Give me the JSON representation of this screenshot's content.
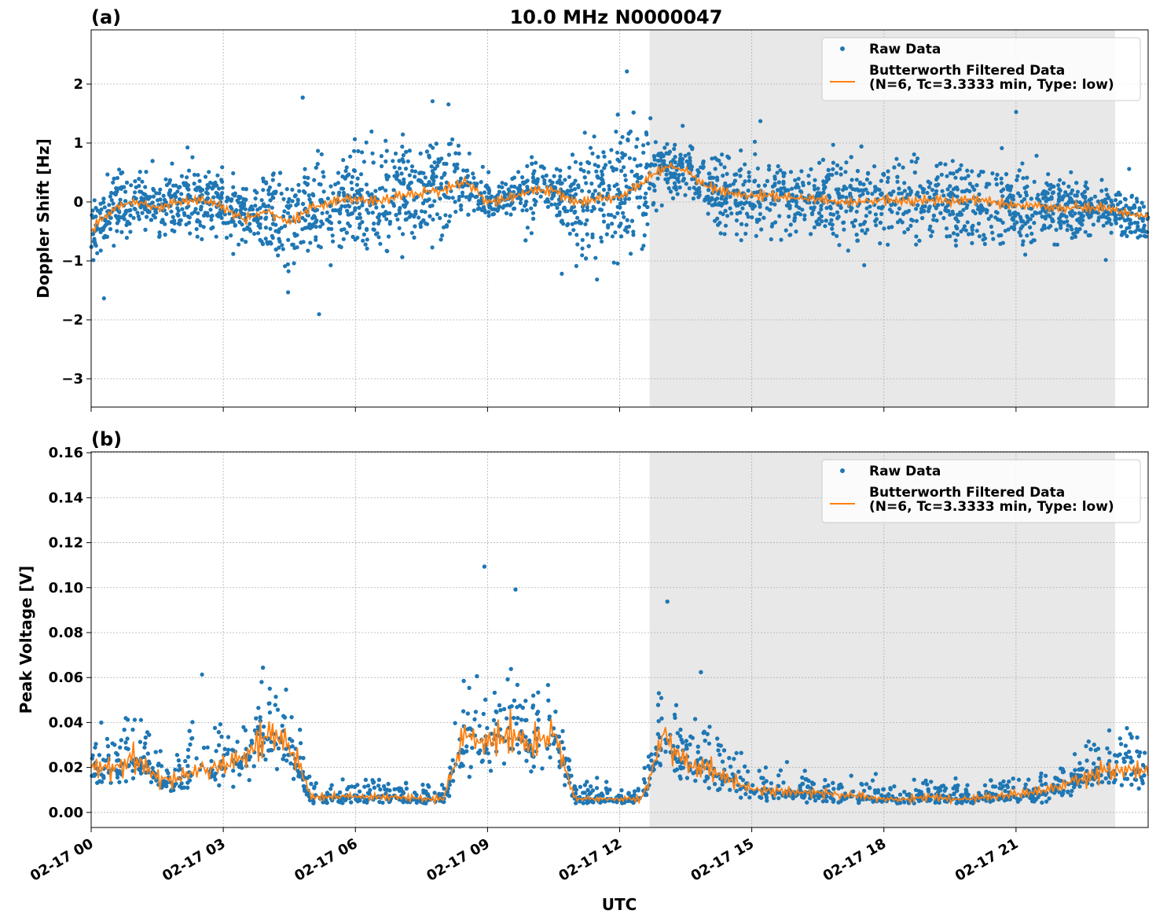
{
  "chart_data": [
    {
      "type": "scatter",
      "panel_label": "(a)",
      "title": "10.0 MHz N0000047",
      "xlabel": "",
      "ylabel": "Doppler Shift [Hz]",
      "xlim_hours": [
        0,
        24
      ],
      "ylim": [
        -3.48,
        2.92
      ],
      "yticks": [
        2,
        1,
        0,
        -1,
        -2,
        -3
      ],
      "ytick_labels": [
        "2",
        "1",
        "0",
        "−1",
        "−2",
        "−3"
      ],
      "grid": true,
      "legend_placement": "top-right",
      "shaded_region_hours": [
        12.68,
        23.25
      ],
      "shade_color": "#e8e8e8",
      "series": [
        {
          "name": "Raw Data",
          "color": "#1f77b4",
          "kind": "points",
          "x_hours_step": 0.5,
          "center": [
            -0.5,
            -0.1,
            0.0,
            -0.1,
            0.0,
            0.05,
            -0.1,
            -0.3,
            -0.15,
            -0.35,
            -0.1,
            0.0,
            0.05,
            0.0,
            0.1,
            0.15,
            0.2,
            0.35,
            0.0,
            0.05,
            0.2,
            0.2,
            0.0,
            0.05,
            0.1,
            0.3,
            0.6,
            0.55,
            0.25,
            0.15,
            0.1,
            0.1,
            0.05,
            0.05,
            0.0,
            0.0,
            0.05,
            0.0,
            0.05,
            0.0,
            0.05,
            0.0,
            -0.05,
            -0.05,
            -0.1,
            -0.1,
            -0.1,
            -0.2,
            -0.25
          ],
          "spread": [
            0.7,
            0.7,
            0.7,
            0.7,
            0.7,
            0.7,
            0.7,
            0.7,
            0.8,
            1.2,
            1.1,
            1.1,
            1.1,
            1.1,
            1.1,
            1.1,
            1.1,
            0.5,
            0.35,
            0.35,
            0.8,
            0.35,
            1.3,
            1.3,
            1.3,
            1.3,
            0.5,
            0.6,
            0.6,
            0.8,
            0.9,
            0.9,
            0.9,
            0.9,
            0.9,
            0.9,
            0.9,
            0.9,
            0.9,
            0.9,
            0.9,
            0.9,
            0.9,
            0.9,
            0.7,
            0.6,
            0.5,
            0.5,
            0.5
          ]
        },
        {
          "name": "Butterworth Filtered Data\n(N=6, Tc=3.3333 min, Type: low)",
          "color": "#ff7f0e",
          "kind": "line",
          "x_hours_step": 0.5,
          "values": [
            -0.5,
            -0.1,
            0.0,
            -0.1,
            0.0,
            0.05,
            -0.1,
            -0.3,
            -0.15,
            -0.35,
            -0.1,
            0.0,
            0.05,
            0.0,
            0.1,
            0.15,
            0.2,
            0.35,
            0.0,
            0.05,
            0.2,
            0.2,
            0.0,
            0.05,
            0.1,
            0.3,
            0.6,
            0.55,
            0.25,
            0.15,
            0.1,
            0.1,
            0.05,
            0.05,
            0.0,
            0.0,
            0.05,
            0.0,
            0.05,
            0.0,
            0.05,
            0.0,
            -0.05,
            -0.05,
            -0.1,
            -0.1,
            -0.1,
            -0.2,
            -0.25
          ]
        }
      ],
      "legend": [
        "Raw Data",
        "Butterworth Filtered Data",
        "(N=6, Tc=3.3333 min, Type: low)"
      ]
    },
    {
      "type": "scatter",
      "panel_label": "(b)",
      "xlabel": "UTC",
      "ylabel": "Peak Voltage [V]",
      "xlim_hours": [
        0,
        24
      ],
      "ylim": [
        -0.0067,
        0.1604
      ],
      "yticks": [
        0.0,
        0.02,
        0.04,
        0.06,
        0.08,
        0.1,
        0.12,
        0.14,
        0.16
      ],
      "ytick_labels": [
        "0.00",
        "0.02",
        "0.04",
        "0.06",
        "0.08",
        "0.10",
        "0.12",
        "0.14",
        "0.16"
      ],
      "xtick_labels": [
        "02-17 00",
        "02-17 03",
        "02-17 06",
        "02-17 09",
        "02-17 12",
        "02-17 15",
        "02-17 18",
        "02-17 21"
      ],
      "grid": true,
      "legend_placement": "top-right",
      "shaded_region_hours": [
        12.68,
        23.25
      ],
      "series": [
        {
          "name": "Raw Data",
          "color": "#1f77b4",
          "kind": "points",
          "x_hours_step": 0.5,
          "center": [
            0.02,
            0.02,
            0.025,
            0.015,
            0.015,
            0.02,
            0.02,
            0.025,
            0.035,
            0.03,
            0.007,
            0.007,
            0.007,
            0.007,
            0.007,
            0.006,
            0.006,
            0.035,
            0.03,
            0.035,
            0.03,
            0.035,
            0.006,
            0.006,
            0.006,
            0.006,
            0.035,
            0.022,
            0.02,
            0.015,
            0.01,
            0.01,
            0.009,
            0.009,
            0.008,
            0.007,
            0.006,
            0.006,
            0.007,
            0.006,
            0.006,
            0.007,
            0.008,
            0.009,
            0.012,
            0.015,
            0.018,
            0.02,
            0.018
          ]
        },
        {
          "name": "Butterworth Filtered Data\n(N=6, Tc=3.3333 min, Type: low)",
          "color": "#ff7f0e",
          "kind": "line",
          "x_hours_step": 0.5,
          "values": [
            0.02,
            0.02,
            0.025,
            0.015,
            0.015,
            0.02,
            0.02,
            0.025,
            0.035,
            0.03,
            0.007,
            0.007,
            0.007,
            0.007,
            0.007,
            0.006,
            0.006,
            0.035,
            0.03,
            0.035,
            0.03,
            0.035,
            0.006,
            0.006,
            0.006,
            0.006,
            0.035,
            0.022,
            0.02,
            0.015,
            0.01,
            0.01,
            0.009,
            0.009,
            0.008,
            0.007,
            0.006,
            0.006,
            0.007,
            0.006,
            0.006,
            0.007,
            0.008,
            0.009,
            0.012,
            0.015,
            0.018,
            0.02,
            0.018
          ]
        }
      ],
      "legend": [
        "Raw Data",
        "Butterworth Filtered Data",
        "(N=6, Tc=3.3333 min, Type: low)"
      ]
    }
  ]
}
